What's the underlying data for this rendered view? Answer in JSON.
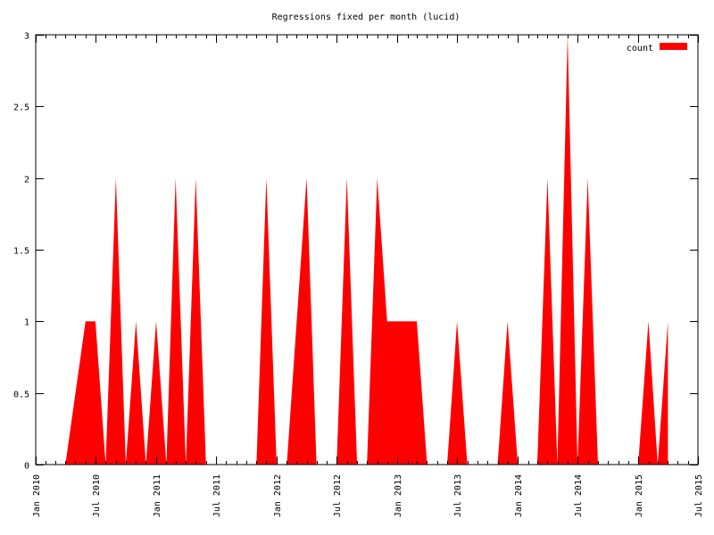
{
  "chart_data": {
    "type": "area",
    "title": "Regressions fixed per month (lucid)",
    "xlabel": "",
    "ylabel": "",
    "x_axis": {
      "type": "date",
      "range": [
        "2010-01-01",
        "2015-07-01"
      ],
      "tick_labels": [
        "Jan 2010",
        "Jul 2010",
        "Jan 2011",
        "Jul 2011",
        "Jan 2012",
        "Jul 2012",
        "Jan 2013",
        "Jul 2013",
        "Jan 2014",
        "Jul 2014",
        "Jan 2015",
        "Jul 2015"
      ],
      "tick_dates": [
        "2010-01-01",
        "2010-07-01",
        "2011-01-01",
        "2011-07-01",
        "2012-01-01",
        "2012-07-01",
        "2013-01-01",
        "2013-07-01",
        "2014-01-01",
        "2014-07-01",
        "2015-01-01",
        "2015-07-01"
      ]
    },
    "y_axis": {
      "range": [
        0,
        3
      ],
      "tick_values": [
        0,
        0.5,
        1,
        1.5,
        2,
        2.5,
        3
      ],
      "tick_labels": [
        "0",
        "0.5",
        "1",
        "1.5",
        "2",
        "2.5",
        "3"
      ]
    },
    "legend": {
      "position": "top-right",
      "entries": [
        "count"
      ]
    },
    "grid": false,
    "series": [
      {
        "name": "count",
        "color": "#ff0000",
        "points": [
          [
            "2010-04-01",
            0
          ],
          [
            "2010-06-01",
            1
          ],
          [
            "2010-07-01",
            1
          ],
          [
            "2010-08-01",
            0
          ],
          [
            "2010-09-01",
            2
          ],
          [
            "2010-10-01",
            0
          ],
          [
            "2010-11-01",
            1
          ],
          [
            "2010-12-01",
            0
          ],
          [
            "2011-01-01",
            1
          ],
          [
            "2011-02-01",
            0
          ],
          [
            "2011-03-01",
            2
          ],
          [
            "2011-04-01",
            0
          ],
          [
            "2011-05-01",
            2
          ],
          [
            "2011-06-01",
            0
          ],
          [
            "2011-11-01",
            0
          ],
          [
            "2011-12-01",
            2
          ],
          [
            "2012-01-01",
            0
          ],
          [
            "2012-02-01",
            0
          ],
          [
            "2012-04-01",
            2
          ],
          [
            "2012-05-01",
            0
          ],
          [
            "2012-07-01",
            0
          ],
          [
            "2012-08-01",
            2
          ],
          [
            "2012-09-01",
            0
          ],
          [
            "2012-10-01",
            0
          ],
          [
            "2012-11-01",
            2
          ],
          [
            "2012-12-01",
            1
          ],
          [
            "2013-01-01",
            1
          ],
          [
            "2013-02-01",
            1
          ],
          [
            "2013-03-01",
            1
          ],
          [
            "2013-04-01",
            0
          ],
          [
            "2013-06-01",
            0
          ],
          [
            "2013-07-01",
            1
          ],
          [
            "2013-08-01",
            0
          ],
          [
            "2013-11-01",
            0
          ],
          [
            "2013-12-01",
            1
          ],
          [
            "2014-01-01",
            0
          ],
          [
            "2014-03-01",
            0
          ],
          [
            "2014-04-01",
            2
          ],
          [
            "2014-05-01",
            0
          ],
          [
            "2014-06-01",
            3
          ],
          [
            "2014-07-01",
            0
          ],
          [
            "2014-08-01",
            2
          ],
          [
            "2014-09-01",
            0
          ],
          [
            "2015-01-01",
            0
          ],
          [
            "2015-02-01",
            1
          ],
          [
            "2015-03-01",
            0
          ],
          [
            "2015-04-01",
            1
          ]
        ]
      }
    ]
  }
}
